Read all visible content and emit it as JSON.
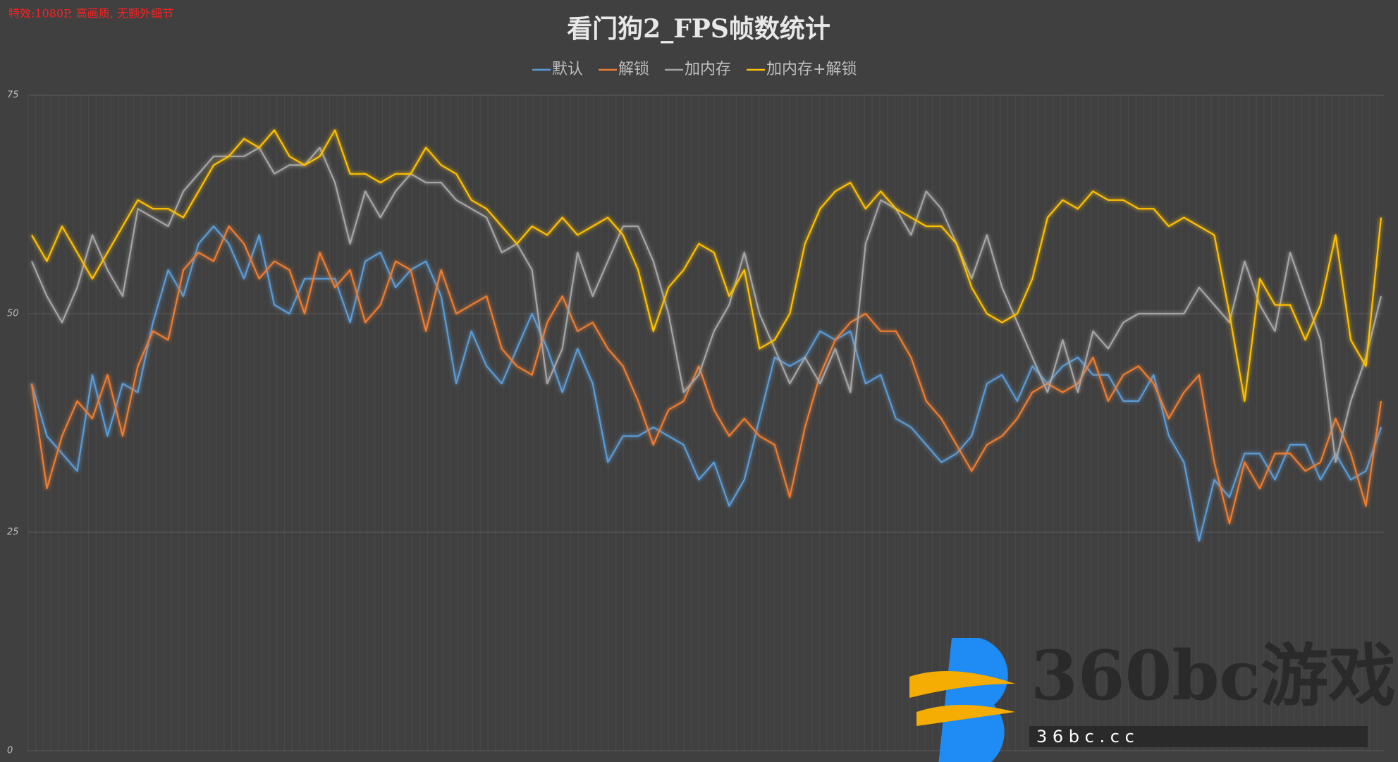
{
  "chart_data": {
    "type": "line",
    "title": "看门狗2_FPS帧数统计",
    "annotation": "特效:1080P, 高画质, 无额外细节",
    "watermark": "360bc游戏",
    "watermark_sub": "3 6 b c . c c",
    "ylim": [
      0,
      75
    ],
    "yticks": [
      0,
      25,
      50,
      75
    ],
    "grid": true,
    "legend": "top",
    "series": [
      {
        "name": "默认",
        "color": "#5b9bd5",
        "values": [
          42,
          36,
          34,
          32,
          43,
          36,
          42,
          41,
          49,
          55,
          52,
          58,
          60,
          58,
          54,
          59,
          51,
          50,
          54,
          54,
          54,
          49,
          56,
          57,
          53,
          55,
          56,
          52,
          42,
          48,
          44,
          42,
          46,
          50,
          46,
          41,
          46,
          42,
          33,
          36,
          36,
          37,
          36,
          35,
          31,
          33,
          28,
          31,
          38,
          45,
          44,
          45,
          48,
          47,
          48,
          42,
          43,
          38,
          37,
          35,
          33,
          34,
          36,
          42,
          43,
          40,
          44,
          42,
          44,
          45,
          43,
          43,
          40,
          40,
          43,
          36,
          33,
          24,
          31,
          29,
          34,
          34,
          31,
          35,
          35,
          31,
          34,
          31,
          32,
          37
        ]
      },
      {
        "name": "解锁",
        "color": "#ed7d31",
        "values": [
          42,
          30,
          36,
          40,
          38,
          43,
          36,
          44,
          48,
          47,
          55,
          57,
          56,
          60,
          58,
          54,
          56,
          55,
          50,
          57,
          53,
          55,
          49,
          51,
          56,
          55,
          48,
          55,
          50,
          51,
          52,
          46,
          44,
          43,
          49,
          52,
          48,
          49,
          46,
          44,
          40,
          35,
          39,
          40,
          44,
          39,
          36,
          38,
          36,
          35,
          29,
          37,
          43,
          47,
          49,
          50,
          48,
          48,
          45,
          40,
          38,
          35,
          32,
          35,
          36,
          38,
          41,
          42,
          41,
          42,
          45,
          40,
          43,
          44,
          42,
          38,
          41,
          43,
          33,
          26,
          33,
          30,
          34,
          34,
          32,
          33,
          38,
          34,
          28,
          40
        ]
      },
      {
        "name": "加内存",
        "color": "#a5a5a5",
        "values": [
          56,
          52,
          49,
          53,
          59,
          55,
          52,
          62,
          61,
          60,
          64,
          66,
          68,
          68,
          68,
          69,
          66,
          67,
          67,
          69,
          65,
          58,
          64,
          61,
          64,
          66,
          65,
          65,
          63,
          62,
          61,
          57,
          58,
          55,
          42,
          46,
          57,
          52,
          56,
          60,
          60,
          56,
          50,
          41,
          43,
          48,
          51,
          57,
          50,
          46,
          42,
          45,
          42,
          46,
          41,
          58,
          63,
          62,
          59,
          64,
          62,
          58,
          54,
          59,
          53,
          49,
          45,
          41,
          47,
          41,
          48,
          46,
          49,
          50,
          50,
          50,
          50,
          53,
          51,
          49,
          56,
          51,
          48,
          57,
          52,
          47,
          33,
          40,
          45,
          52
        ]
      },
      {
        "name": "加内存+解锁",
        "color": "#ffc000",
        "values": [
          59,
          56,
          60,
          57,
          54,
          57,
          60,
          63,
          62,
          62,
          61,
          64,
          67,
          68,
          70,
          69,
          71,
          68,
          67,
          68,
          71,
          66,
          66,
          65,
          66,
          66,
          69,
          67,
          66,
          63,
          62,
          60,
          58,
          60,
          59,
          61,
          59,
          60,
          61,
          59,
          55,
          48,
          53,
          55,
          58,
          57,
          52,
          55,
          46,
          47,
          50,
          58,
          62,
          64,
          65,
          62,
          64,
          62,
          61,
          60,
          60,
          58,
          53,
          50,
          49,
          50,
          54,
          61,
          63,
          62,
          64,
          63,
          63,
          62,
          62,
          60,
          61,
          60,
          59,
          50,
          40,
          54,
          51,
          51,
          47,
          51,
          59,
          47,
          44,
          61
        ]
      }
    ]
  }
}
